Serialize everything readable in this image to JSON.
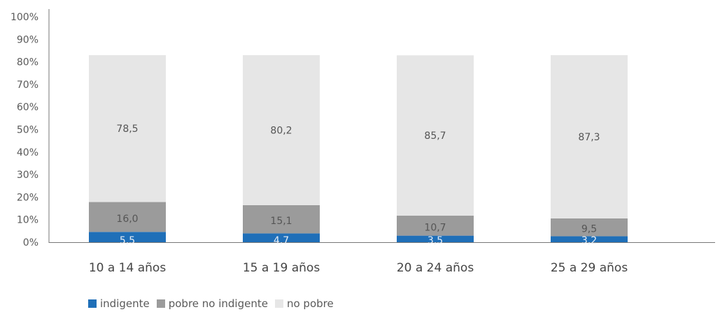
{
  "chart_data": {
    "type": "bar",
    "stacked": true,
    "categories": [
      "10 a 14 años",
      "15 a 19 años",
      "20 a 24 años",
      "25 a 29 años"
    ],
    "series": [
      {
        "name": "indigente",
        "color": "#1f6fb8",
        "values": [
          5.5,
          4.7,
          3.5,
          3.2
        ],
        "labels": [
          "5,5",
          "4,7",
          "3,5",
          "3,2"
        ]
      },
      {
        "name": "pobre no indigente",
        "color": "#9b9b9b",
        "values": [
          16.0,
          15.1,
          10.7,
          9.5
        ],
        "labels": [
          "16,0",
          "15,1",
          "10,7",
          "9,5"
        ]
      },
      {
        "name": "no pobre",
        "color": "#e6e6e6",
        "values": [
          78.5,
          80.2,
          85.7,
          87.3
        ],
        "labels": [
          "78,5",
          "80,2",
          "85,7",
          "87,3"
        ]
      }
    ],
    "y_ticks": [
      "0%",
      "10%",
      "20%",
      "30%",
      "40%",
      "50%",
      "60%",
      "70%",
      "80%",
      "90%",
      "100%"
    ],
    "ylim": [
      0,
      100
    ],
    "grid": false,
    "legend_position": "bottom-left"
  }
}
